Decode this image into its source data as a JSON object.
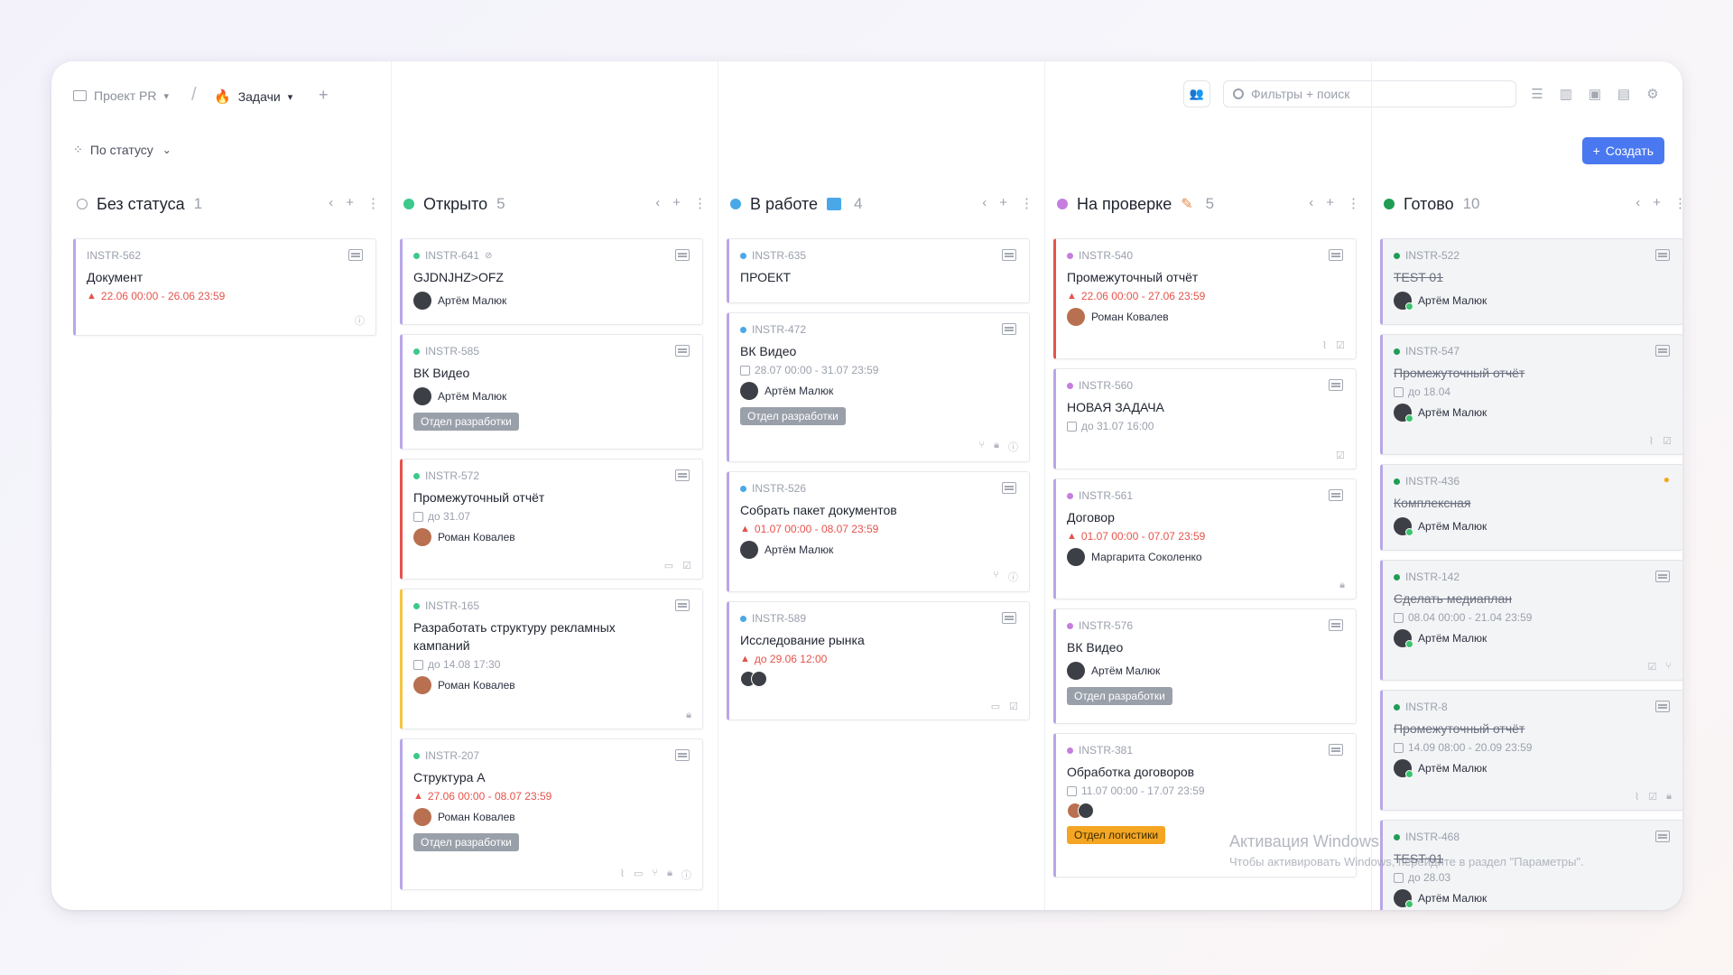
{
  "header": {
    "project": "Проект PR",
    "tasks": "Задачи",
    "search_placeholder": "Фильтры + поиск",
    "group_by": "По статусу",
    "create_label": "Создать"
  },
  "colors": {
    "no_status": "#9aa0ac",
    "open": "#3cc98a",
    "in_progress": "#4aa8e8",
    "review": "#c57ee0",
    "done": "#1f9d55",
    "overdue": "#e5534b",
    "accent": "#4a78f0"
  },
  "columns": [
    {
      "title": "Без статуса",
      "count": "1",
      "cards": [
        {
          "id": "INSTR-562",
          "title": "Документ",
          "date": "22.06 00:00 - 26.06 23:59"
        }
      ]
    },
    {
      "title": "Открыто",
      "count": "5",
      "cards": [
        {
          "id": "INSTR-641",
          "title": "GJDNJHZ>OFZ",
          "person": "Артём Малюк"
        },
        {
          "id": "INSTR-585",
          "title": "ВК Видео",
          "person": "Артём Малюк",
          "tag": "Отдел разработки"
        },
        {
          "id": "INSTR-572",
          "title": "Промежуточный отчёт",
          "date": "до 31.07",
          "person": "Роман Ковалев"
        },
        {
          "id": "INSTR-165",
          "title": "Разработать структуру рекламных кампаний",
          "date": "до 14.08 17:30",
          "person": "Роман Ковалев"
        },
        {
          "id": "INSTR-207",
          "title": "Структура А",
          "date": "27.06 00:00 - 08.07 23:59",
          "person": "Роман Ковалев",
          "tag": "Отдел разработки"
        }
      ]
    },
    {
      "title": "В работе",
      "count": "4",
      "cards": [
        {
          "id": "INSTR-635",
          "title": "ПРОЕКТ"
        },
        {
          "id": "INSTR-472",
          "title": "ВК Видео",
          "date": "28.07 00:00 - 31.07 23:59",
          "person": "Артём Малюк",
          "tag": "Отдел разработки"
        },
        {
          "id": "INSTR-526",
          "title": "Собрать пакет документов",
          "date": "01.07 00:00 - 08.07 23:59",
          "person": "Артём Малюк"
        },
        {
          "id": "INSTR-589",
          "title": "Исследование рынка",
          "date": "до 29.06 12:00"
        }
      ]
    },
    {
      "title": "На проверке",
      "count": "5",
      "cards": [
        {
          "id": "INSTR-540",
          "title": "Промежуточный отчёт",
          "date": "22.06 00:00 - 27.06 23:59",
          "person": "Роман Ковалев"
        },
        {
          "id": "INSTR-560",
          "title": "НОВАЯ ЗАДАЧА",
          "date": "до 31.07 16:00"
        },
        {
          "id": "INSTR-561",
          "title": "Договор",
          "date": "01.07 00:00 - 07.07 23:59",
          "person": "Маргарита Соколенко"
        },
        {
          "id": "INSTR-576",
          "title": "ВК Видео",
          "person": "Артём Малюк",
          "tag": "Отдел разработки"
        },
        {
          "id": "INSTR-381",
          "title": "Обработка договоров",
          "date": "11.07 00:00 - 17.07 23:59",
          "tag": "Отдел логистики"
        }
      ]
    },
    {
      "title": "Готово",
      "count": "10",
      "cards": [
        {
          "id": "INSTR-522",
          "title": "TEST 01",
          "person": "Артём Малюк"
        },
        {
          "id": "INSTR-547",
          "title": "Промежуточный отчёт",
          "date": "до 18.04",
          "person": "Артём Малюк"
        },
        {
          "id": "INSTR-436",
          "title": "Комплексная",
          "person": "Артём Малюк"
        },
        {
          "id": "INSTR-142",
          "title": "Сделать медиаплан",
          "date": "08.04 00:00 - 21.04 23:59",
          "person": "Артём Малюк"
        },
        {
          "id": "INSTR-8",
          "title": "Промежуточный отчёт",
          "date": "14.09 08:00 - 20.09 23:59",
          "person": "Артём Малюк"
        },
        {
          "id": "INSTR-468",
          "title": "TEST 01",
          "date": "до 28.03",
          "person": "Артём Малюк"
        }
      ]
    }
  ],
  "watermark": {
    "line1": "Активация Windows",
    "line2": "Чтобы активировать Windows, перейдите в раздел \"Параметры\"."
  }
}
